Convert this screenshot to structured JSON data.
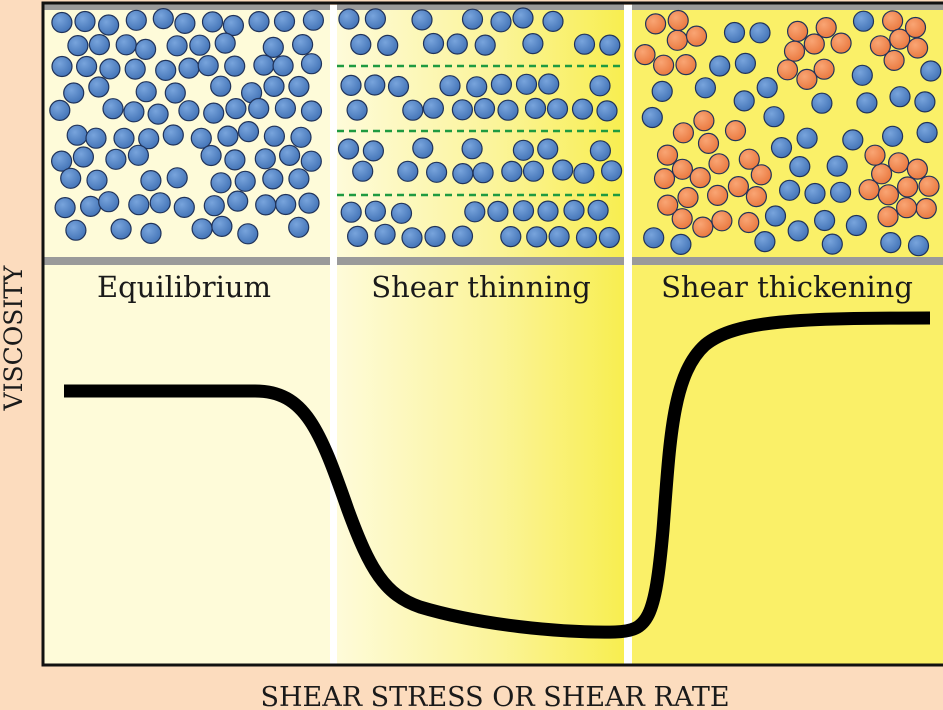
{
  "axes": {
    "y_label": "VISCOSITY",
    "x_label": "SHEAR STRESS OR SHEAR RATE"
  },
  "panels": [
    {
      "id": "equilibrium",
      "label": "Equilibrium"
    },
    {
      "id": "shear-thinning",
      "label": "Shear thinning"
    },
    {
      "id": "shear-thickening",
      "label": "Shear thickening"
    }
  ],
  "colors": {
    "page_background": "#fcdcbe",
    "panel_equilibrium": "#fefbd9",
    "panel_thinning_start": "#fefbd9",
    "panel_thinning_end": "#f8ee50",
    "panel_thickening": "#faf068",
    "particle_blue": "#4f82c4",
    "particle_orange": "#f48a4c",
    "flow_line": "#1f9a40",
    "wall": "#9a9a9a",
    "curve": "#000000"
  },
  "legend_icons": {
    "particle_blue": "sphere-icon",
    "particle_orange": "cluster-sphere-icon"
  }
}
